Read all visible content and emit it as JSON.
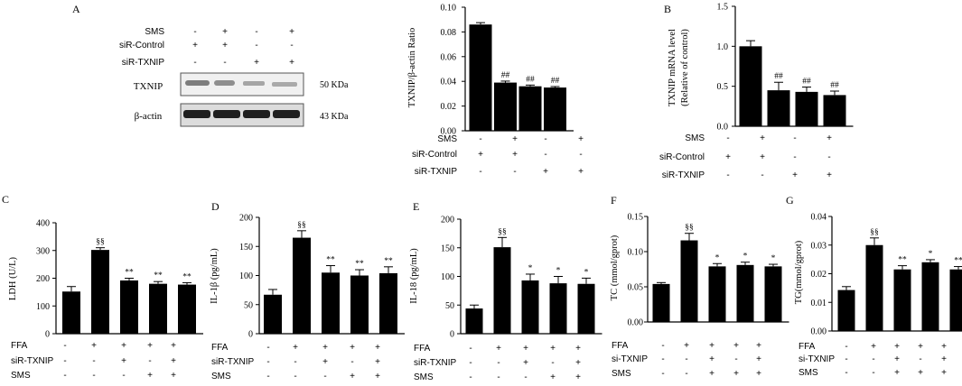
{
  "panel_letters": [
    "A",
    "B",
    "C",
    "D",
    "E",
    "F",
    "G"
  ],
  "blot": {
    "conditions": [
      {
        "label": "SMS",
        "marks": [
          "-",
          "+",
          "-",
          "+"
        ]
      },
      {
        "label": "siR-Control",
        "marks": [
          "+",
          "+",
          "-",
          "-"
        ]
      },
      {
        "label": "siR-TXNIP",
        "marks": [
          "-",
          "-",
          "+",
          "+"
        ]
      }
    ],
    "bands": [
      {
        "label": "TXNIP",
        "size": "50 KDa"
      },
      {
        "label": "β-actin",
        "size": "43 KDa"
      }
    ]
  },
  "chart_data": [
    {
      "id": "A2",
      "type": "bar",
      "ylabel": "TXNIP/β-actin Ratio",
      "ylim": [
        0,
        0.1
      ],
      "ticks": [
        0.0,
        0.02,
        0.04,
        0.06,
        0.08,
        0.1
      ],
      "tick_labels": [
        "0.00",
        "0.02",
        "0.04",
        "0.06",
        "0.08",
        "0.10"
      ],
      "values": [
        0.086,
        0.039,
        0.036,
        0.035
      ],
      "errors": [
        0.0015,
        0.0012,
        0.001,
        0.0008
      ],
      "annotations": [
        "",
        "##",
        "##",
        "##"
      ],
      "conditions": [
        {
          "label": "SMS",
          "marks": [
            "-",
            "+",
            "-",
            "+"
          ]
        },
        {
          "label": "siR-Control",
          "marks": [
            "+",
            "+",
            "-",
            "-"
          ]
        },
        {
          "label": "siR-TXNIP",
          "marks": [
            "-",
            "-",
            "+",
            "+"
          ]
        }
      ]
    },
    {
      "id": "B",
      "type": "bar",
      "ylabel": "TXNIP mRNA level",
      "ylabel2": "(Relative of control)",
      "ylim": [
        0,
        1.5
      ],
      "ticks": [
        0,
        0.5,
        1.0,
        1.5
      ],
      "tick_labels": [
        "0.0",
        "0.5",
        "1.0",
        "1.5"
      ],
      "values": [
        1.0,
        0.45,
        0.43,
        0.39
      ],
      "errors": [
        0.07,
        0.1,
        0.06,
        0.05
      ],
      "annotations": [
        "",
        "##",
        "##",
        "##"
      ],
      "conditions": [
        {
          "label": "SMS",
          "marks": [
            "-",
            "+",
            "-",
            "+"
          ]
        },
        {
          "label": "siR-Control",
          "marks": [
            "+",
            "+",
            "-",
            "-"
          ]
        },
        {
          "label": "siR-TXNIP",
          "marks": [
            "-",
            "-",
            "+",
            "+"
          ]
        }
      ]
    },
    {
      "id": "C",
      "type": "bar",
      "ylabel": "LDH (U/L)",
      "ylim": [
        0,
        400
      ],
      "ticks": [
        0,
        100,
        200,
        300,
        400
      ],
      "tick_labels": [
        "0",
        "100",
        "200",
        "300",
        "400"
      ],
      "values": [
        152,
        302,
        192,
        180,
        177
      ],
      "errors": [
        18,
        8,
        8,
        8,
        7
      ],
      "annotations": [
        "",
        "§§",
        "**",
        "**",
        "**"
      ],
      "conditions": [
        {
          "label": "FFA",
          "marks": [
            "-",
            "+",
            "+",
            "+",
            "+"
          ]
        },
        {
          "label": "siR-TXNIP",
          "marks": [
            "-",
            "-",
            "+",
            "-",
            "+"
          ]
        },
        {
          "label": "SMS",
          "marks": [
            "-",
            "-",
            "-",
            "+",
            "+"
          ]
        }
      ]
    },
    {
      "id": "D",
      "type": "bar",
      "ylabel": "IL-1β (pg/mL)",
      "ylim": [
        0,
        200
      ],
      "ticks": [
        0,
        50,
        100,
        150,
        200
      ],
      "tick_labels": [
        "0",
        "50",
        "100",
        "150",
        "200"
      ],
      "values": [
        67,
        165,
        105,
        100,
        104
      ],
      "errors": [
        9,
        12,
        12,
        10,
        11
      ],
      "annotations": [
        "",
        "§§",
        "**",
        "**",
        "**"
      ],
      "conditions": [
        {
          "label": "FFA",
          "marks": [
            "-",
            "+",
            "+",
            "+",
            "+"
          ]
        },
        {
          "label": "siR-TXNIP",
          "marks": [
            "-",
            "-",
            "+",
            "-",
            "+"
          ]
        },
        {
          "label": "SMS",
          "marks": [
            "-",
            "-",
            "-",
            "+",
            "+"
          ]
        }
      ]
    },
    {
      "id": "E",
      "type": "bar",
      "ylabel": "IL-18 (pg/mL)",
      "ylim": [
        0,
        200
      ],
      "ticks": [
        0,
        50,
        100,
        150,
        200
      ],
      "tick_labels": [
        "0",
        "50",
        "100",
        "150",
        "200"
      ],
      "values": [
        44,
        151,
        93,
        88,
        87
      ],
      "errors": [
        6,
        17,
        11,
        12,
        10
      ],
      "annotations": [
        "",
        "§§",
        "*",
        "*",
        "*"
      ],
      "conditions": [
        {
          "label": "FFA",
          "marks": [
            "-",
            "+",
            "+",
            "+",
            "+"
          ]
        },
        {
          "label": "siR-TXNIP",
          "marks": [
            "-",
            "-",
            "+",
            "-",
            "+"
          ]
        },
        {
          "label": "SMS",
          "marks": [
            "-",
            "-",
            "-",
            "+",
            "+"
          ]
        }
      ]
    },
    {
      "id": "F",
      "type": "bar",
      "ylabel": "TC (mmol/gprot)",
      "ylim": [
        0,
        0.15
      ],
      "ticks": [
        0,
        0.05,
        0.1,
        0.15
      ],
      "tick_labels": [
        "0.00",
        "0.05",
        "0.10",
        "0.15"
      ],
      "values": [
        0.054,
        0.116,
        0.079,
        0.081,
        0.079
      ],
      "errors": [
        0.002,
        0.01,
        0.004,
        0.004,
        0.003
      ],
      "annotations": [
        "",
        "§§",
        "*",
        "*",
        "*"
      ],
      "conditions": [
        {
          "label": "FFA",
          "marks": [
            "-",
            "+",
            "+",
            "+",
            "+"
          ]
        },
        {
          "label": "si-TXNIP",
          "marks": [
            "-",
            "-",
            "+",
            "-",
            "+"
          ]
        },
        {
          "label": "SMS",
          "marks": [
            "-",
            "-",
            "+",
            "+",
            "+"
          ]
        }
      ]
    },
    {
      "id": "G",
      "type": "bar",
      "ylabel": "TG(mmol/gprot)",
      "ylim": [
        0,
        0.04
      ],
      "ticks": [
        0,
        0.01,
        0.02,
        0.03,
        0.04
      ],
      "tick_labels": [
        "0.00",
        "0.01",
        "0.02",
        "0.03",
        "0.04"
      ],
      "values": [
        0.0143,
        0.03,
        0.0215,
        0.024,
        0.0215
      ],
      "errors": [
        0.0012,
        0.0025,
        0.0013,
        0.0009,
        0.001
      ],
      "annotations": [
        "",
        "§§",
        "**",
        "*",
        "**"
      ],
      "conditions": [
        {
          "label": "FFA",
          "marks": [
            "-",
            "+",
            "+",
            "+",
            "+"
          ]
        },
        {
          "label": "si-TXNIP",
          "marks": [
            "-",
            "-",
            "+",
            "-",
            "+"
          ]
        },
        {
          "label": "SMS",
          "marks": [
            "-",
            "-",
            "+",
            "+",
            "+"
          ]
        }
      ]
    }
  ]
}
